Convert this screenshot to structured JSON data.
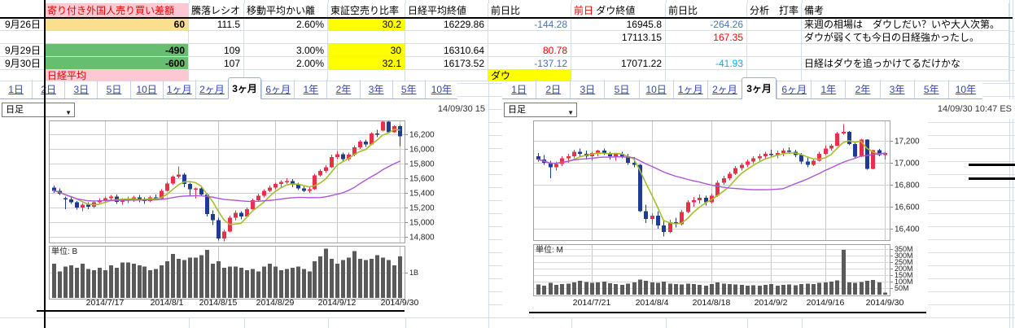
{
  "colors": {
    "header_pink": "#FCC9D2",
    "header_red": "#E60000",
    "cell_tan": "#FADF8E",
    "cell_green": "#67BD72",
    "cell_yellow": "#FFFF00",
    "pos_red": "#FF0000",
    "neg_blue": "#4472C4",
    "neg_cyan": "#00B0F0",
    "gridline": "#D3DDEC",
    "tab_blue": "#3344BB",
    "candle_up": "#E8304A",
    "candle_down": "#1E3C96",
    "ma_short": "#A6BE2B",
    "ma_long": "#AC54DC",
    "volume_bar": "#5A5A5A",
    "chart_border": "#A0A0A0",
    "chart_grid": "#CFCFCF"
  },
  "table": {
    "headers": {
      "date": "",
      "foreign": "寄り付き外国人売り買い差額",
      "ratio": "騰落レシオ",
      "ma_dev": "移動平均かい離",
      "short_ratio": "東証空売り比率",
      "nikkei_close": "日経平均終値",
      "nikkei_chg": "前日比",
      "dow_close": [
        {
          "t": "前日",
          "c": "hred"
        },
        {
          "t": " ダウ終値"
        }
      ],
      "dow_chg": "前日比",
      "analysis": "分析　打率",
      "note": "備考"
    },
    "rows": [
      {
        "date": "9月26日",
        "foreign": {
          "t": "60",
          "bg": "tan",
          "b": 1
        },
        "ratio": "111.5",
        "ma_dev": "2.60%",
        "short_ratio": {
          "t": "30.2",
          "bg": "yellow"
        },
        "nikkei_close": "16229.86",
        "nikkei_chg": {
          "t": "-144.28",
          "c": "blue"
        },
        "dow_close": "16945.8",
        "dow_chg": {
          "t": "-264.26",
          "c": "blue"
        },
        "note": "来週の相場は　ダウしだい？いや大人次第。"
      },
      {
        "dow_close": "17113.15",
        "dow_chg": {
          "t": "167.35",
          "c": "red"
        },
        "note": "ダウが弱くても今日の日経強かったし。"
      },
      {
        "date": "9月29日",
        "foreign": {
          "t": "-490",
          "bg": "green",
          "b": 1
        },
        "ratio": "109",
        "ma_dev": "3.00%",
        "short_ratio": {
          "t": "30",
          "bg": "yellow"
        },
        "nikkei_close": "16310.64",
        "nikkei_chg": {
          "t": "80.78",
          "c": "red"
        }
      },
      {
        "date": "9月30日",
        "foreign": {
          "t": "-600",
          "bg": "green",
          "b": 1
        },
        "ratio": "107",
        "ma_dev": "2.00%",
        "short_ratio": {
          "t": "32.1",
          "bg": "yellow"
        },
        "nikkei_close": "16173.52",
        "nikkei_chg": {
          "t": "-137.12",
          "c": "blue"
        },
        "dow_close": "17071.22",
        "dow_chg": {
          "t": "-41.93",
          "c": "cyan"
        },
        "note": "日経はダウを追っかけてるだけかな"
      },
      {
        "foreign": {
          "t": "日経平均",
          "bg": "pink",
          "c": "hred",
          "a": "l"
        },
        "nikkei_chg": {
          "t": "ダウ",
          "bg": "yellow",
          "a": "l"
        }
      }
    ]
  },
  "nikkei_chart": {
    "tabs": [
      "1日",
      "2日",
      "3日",
      "5日",
      "10日",
      "1ヶ月",
      "2ヶ月",
      "3ヶ月",
      "6ヶ月",
      "1年",
      "2年",
      "3年",
      "5年",
      "10年"
    ],
    "selected_tab": "3ヶ月",
    "interval": "日足",
    "timestamp": "14/09/30 15",
    "unit_label": "単位: B",
    "price_ticks": [
      {
        "value": 16200,
        "label": "16,200"
      },
      {
        "value": 16000,
        "label": "16,000"
      },
      {
        "value": 15800,
        "label": "15,800"
      },
      {
        "value": 15600,
        "label": "15,600"
      },
      {
        "value": 15400,
        "label": "15,400"
      },
      {
        "value": 15200,
        "label": "15,200"
      },
      {
        "value": 15000,
        "label": "15,000"
      },
      {
        "value": 14800,
        "label": "14,800"
      }
    ],
    "volume_ticks": [
      {
        "value": 1,
        "label": "1B"
      }
    ],
    "y_range": [
      14722,
      16389
    ],
    "volume_max": 2.1,
    "ma_short": 5,
    "ma_long": 25,
    "dates": [
      {
        "label": "2014/7/17",
        "index": 9
      },
      {
        "label": "2014/8/1",
        "index": 20
      },
      {
        "label": "2014/8/15",
        "index": 29
      },
      {
        "label": "2014/8/29",
        "index": 39
      },
      {
        "label": "2014/9/12",
        "index": 50
      },
      {
        "label": "2014/9/30",
        "index": 61
      }
    ],
    "candles": [
      [
        15470,
        15500,
        15400,
        15430
      ],
      [
        15430,
        15460,
        15370,
        15390
      ],
      [
        15330,
        15350,
        15180,
        15310
      ],
      [
        15310,
        15340,
        15250,
        15270
      ],
      [
        15270,
        15290,
        15170,
        15200
      ],
      [
        15200,
        15260,
        15150,
        15240
      ],
      [
        15240,
        15270,
        15180,
        15210
      ],
      [
        15210,
        15290,
        15190,
        15270
      ],
      [
        15270,
        15330,
        15240,
        15300
      ],
      [
        15300,
        15350,
        15260,
        15330
      ],
      [
        15330,
        15370,
        15290,
        15350
      ],
      [
        15350,
        15380,
        15250,
        15280
      ],
      [
        15280,
        15330,
        15240,
        15300
      ],
      [
        15300,
        15350,
        15260,
        15320
      ],
      [
        15320,
        15360,
        15280,
        15340
      ],
      [
        15340,
        15370,
        15270,
        15300
      ],
      [
        15300,
        15340,
        15250,
        15290
      ],
      [
        15290,
        15360,
        15270,
        15340
      ],
      [
        15340,
        15380,
        15300,
        15320
      ],
      [
        15320,
        15450,
        15310,
        15430
      ],
      [
        15430,
        15550,
        15420,
        15530
      ],
      [
        15530,
        15640,
        15510,
        15620
      ],
      [
        15620,
        15760,
        15600,
        15650
      ],
      [
        15650,
        15670,
        15480,
        15520
      ],
      [
        15520,
        15540,
        15350,
        15450
      ],
      [
        15450,
        15470,
        15320,
        15460
      ],
      [
        15460,
        15480,
        15360,
        15380
      ],
      [
        15380,
        15400,
        15080,
        15110
      ],
      [
        15110,
        15160,
        14960,
        15030
      ],
      [
        15030,
        15060,
        14750,
        14780
      ],
      [
        14780,
        14900,
        14740,
        14870
      ],
      [
        14870,
        15090,
        14860,
        15060
      ],
      [
        15060,
        15160,
        15020,
        15130
      ],
      [
        15130,
        15150,
        15040,
        15080
      ],
      [
        15080,
        15200,
        15060,
        15180
      ],
      [
        15180,
        15320,
        15170,
        15300
      ],
      [
        15300,
        15390,
        15280,
        15360
      ],
      [
        15360,
        15450,
        15340,
        15430
      ],
      [
        15430,
        15500,
        15410,
        15470
      ],
      [
        15470,
        15540,
        15450,
        15520
      ],
      [
        15520,
        15570,
        15480,
        15550
      ],
      [
        15550,
        15600,
        15520,
        15560
      ],
      [
        15560,
        15590,
        15480,
        15510
      ],
      [
        15510,
        15540,
        15440,
        15460
      ],
      [
        15460,
        15490,
        15410,
        15430
      ],
      [
        15430,
        15480,
        15400,
        15450
      ],
      [
        15450,
        15660,
        15440,
        15640
      ],
      [
        15640,
        15720,
        15620,
        15700
      ],
      [
        15700,
        15780,
        15670,
        15750
      ],
      [
        15750,
        15920,
        15740,
        15890
      ],
      [
        15890,
        15970,
        15860,
        15930
      ],
      [
        15930,
        15950,
        15830,
        15860
      ],
      [
        15860,
        15950,
        15840,
        15920
      ],
      [
        15920,
        16050,
        15900,
        16020
      ],
      [
        16020,
        16120,
        16000,
        16100
      ],
      [
        16100,
        16130,
        16030,
        16060
      ],
      [
        16060,
        16230,
        16050,
        16210
      ],
      [
        16210,
        16260,
        16160,
        16205
      ],
      [
        16250,
        16380,
        16240,
        16374
      ],
      [
        16374,
        16380,
        16210,
        16230
      ],
      [
        16230,
        16320,
        16220,
        16311
      ],
      [
        16311,
        16330,
        16040,
        16174
      ]
    ],
    "volumes": [
      1.35,
      1.05,
      1.25,
      1.3,
      1.2,
      1.35,
      1.15,
      1.1,
      1.2,
      1.1,
      1.3,
      1.2,
      1.4,
      1.4,
      1.35,
      1.3,
      1.25,
      1.1,
      1.15,
      1.3,
      1.45,
      1.75,
      1.55,
      1.5,
      1.6,
      1.6,
      1.7,
      1.9,
      1.35,
      1.45,
      1.2,
      1.25,
      1.25,
      1.2,
      1.1,
      1.15,
      1.05,
      1.25,
      1.35,
      1.25,
      1.1,
      1.15,
      1.2,
      1.25,
      1.15,
      1.05,
      1.45,
      1.65,
      1.95,
      1.55,
      1.35,
      1.5,
      1.6,
      1.85,
      1.55,
      1.5,
      1.55,
      1.7,
      1.6,
      1.5,
      1.3,
      1.65
    ]
  },
  "dow_chart": {
    "tabs": [
      "1日",
      "2日",
      "3日",
      "5日",
      "10日",
      "1ヶ月",
      "2ヶ月",
      "3ヶ月",
      "6ヶ月",
      "1年",
      "2年",
      "3年",
      "5年",
      "10年"
    ],
    "selected_tab": "3ヶ月",
    "interval": "日足",
    "timestamp": "14/09/30 10:47 ES",
    "unit_label": "単位: M",
    "price_ticks": [
      {
        "value": 17200,
        "label": "17,200"
      },
      {
        "value": 17000,
        "label": "17,000"
      },
      {
        "value": 16800,
        "label": "16,800"
      },
      {
        "value": 16600,
        "label": "16,600"
      },
      {
        "value": 16400,
        "label": "16,400"
      }
    ],
    "volume_ticks": [
      {
        "value": 350,
        "label": "350M"
      },
      {
        "value": 300,
        "label": "300M"
      },
      {
        "value": 250,
        "label": "250M"
      },
      {
        "value": 200,
        "label": "200M"
      },
      {
        "value": 150,
        "label": "150M"
      },
      {
        "value": 100,
        "label": "100M"
      },
      {
        "value": 50,
        "label": "50M"
      }
    ],
    "y_range": [
      16296,
      17385
    ],
    "volume_max": 394,
    "ma_short": 5,
    "ma_long": 25,
    "dates": [
      {
        "label": "2014/7/21",
        "index": 9
      },
      {
        "label": "2014/8/4",
        "index": 19
      },
      {
        "label": "2014/8/18",
        "index": 29
      },
      {
        "label": "2014/9/2",
        "index": 39
      },
      {
        "label": "2014/9/16",
        "index": 48
      },
      {
        "label": "2014/9/30",
        "index": 58
      }
    ],
    "candles": [
      [
        17060,
        17090,
        17010,
        17030
      ],
      [
        17030,
        17070,
        16980,
        17000
      ],
      [
        17000,
        17020,
        16860,
        16960
      ],
      [
        16960,
        17010,
        16930,
        16990
      ],
      [
        16990,
        17060,
        16970,
        17040
      ],
      [
        17040,
        17080,
        17000,
        17060
      ],
      [
        17060,
        17120,
        17040,
        17100
      ],
      [
        17100,
        17130,
        17050,
        17080
      ],
      [
        17080,
        17110,
        17030,
        17060
      ],
      [
        17060,
        17100,
        17020,
        17090
      ],
      [
        17090,
        17120,
        17060,
        17110
      ],
      [
        17110,
        17130,
        17070,
        17090
      ],
      [
        17090,
        17100,
        17030,
        17060
      ],
      [
        17060,
        17090,
        17020,
        17080
      ],
      [
        17080,
        17100,
        17040,
        17060
      ],
      [
        17060,
        17080,
        16980,
        17000
      ],
      [
        17000,
        17050,
        16960,
        16980
      ],
      [
        16980,
        16990,
        16550,
        16560
      ],
      [
        16560,
        16620,
        16450,
        16490
      ],
      [
        16490,
        16540,
        16440,
        16520
      ],
      [
        16520,
        16560,
        16400,
        16430
      ],
      [
        16430,
        16480,
        16330,
        16370
      ],
      [
        16370,
        16480,
        16360,
        16460
      ],
      [
        16460,
        16500,
        16410,
        16440
      ],
      [
        16440,
        16570,
        16430,
        16550
      ],
      [
        16550,
        16660,
        16540,
        16640
      ],
      [
        16640,
        16690,
        16600,
        16660
      ],
      [
        16660,
        16710,
        16630,
        16680
      ],
      [
        16680,
        16700,
        16610,
        16640
      ],
      [
        16640,
        16720,
        16630,
        16700
      ],
      [
        16700,
        16840,
        16690,
        16820
      ],
      [
        16820,
        16880,
        16800,
        16860
      ],
      [
        16860,
        16920,
        16840,
        16900
      ],
      [
        16900,
        16970,
        16890,
        16950
      ],
      [
        16950,
        17000,
        16930,
        16980
      ],
      [
        16980,
        17030,
        16960,
        17010
      ],
      [
        17010,
        17060,
        16990,
        17040
      ],
      [
        17040,
        17080,
        17020,
        17060
      ],
      [
        17060,
        17100,
        17040,
        17080
      ],
      [
        17080,
        17120,
        17050,
        17070
      ],
      [
        17070,
        17110,
        17040,
        17090
      ],
      [
        17090,
        17130,
        17060,
        17110
      ],
      [
        17110,
        17140,
        17080,
        17100
      ],
      [
        17100,
        17120,
        17050,
        17070
      ],
      [
        17070,
        17090,
        16990,
        17010
      ],
      [
        17010,
        17050,
        16960,
        16980
      ],
      [
        16980,
        17040,
        16970,
        17020
      ],
      [
        17020,
        17100,
        17010,
        17080
      ],
      [
        17080,
        17160,
        17070,
        17131
      ],
      [
        17131,
        17170,
        17110,
        17156
      ],
      [
        17156,
        17280,
        17150,
        17265
      ],
      [
        17265,
        17350,
        17255,
        17280
      ],
      [
        17280,
        17290,
        17160,
        17172
      ],
      [
        17172,
        17180,
        17040,
        17055
      ],
      [
        17055,
        17220,
        17050,
        17210
      ],
      [
        17210,
        17215,
        16935,
        16946
      ],
      [
        16946,
        17120,
        16940,
        17113
      ],
      [
        17113,
        17125,
        17060,
        17071
      ],
      [
        17071,
        17100,
        17030,
        17090
      ]
    ],
    "volumes": [
      78,
      70,
      92,
      75,
      80,
      85,
      95,
      105,
      98,
      90,
      95,
      100,
      88,
      80,
      75,
      85,
      95,
      115,
      105,
      95,
      90,
      100,
      85,
      80,
      78,
      85,
      80,
      75,
      70,
      80,
      95,
      85,
      80,
      78,
      75,
      70,
      72,
      68,
      75,
      80,
      70,
      75,
      78,
      72,
      80,
      85,
      80,
      90,
      95,
      100,
      110,
      345,
      95,
      90,
      98,
      105,
      112,
      95,
      15
    ]
  }
}
